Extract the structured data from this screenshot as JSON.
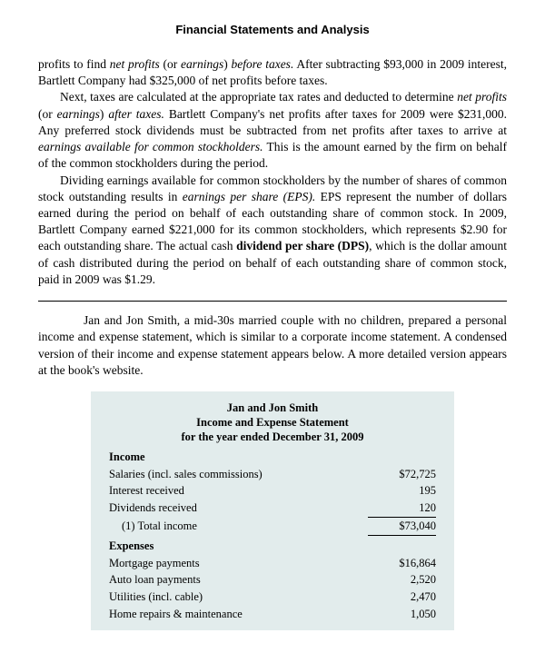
{
  "header": "Financial Statements and Analysis",
  "p1a": "profits to find ",
  "p1b": "net profits",
  "p1c": " (or ",
  "p1d": "earnings",
  "p1e": ") ",
  "p1f": "before taxes.",
  "p1g": " After subtracting $93,000 in 2009 interest, Bartlett Company had $325,000 of net profits before taxes.",
  "p2a": "Next, taxes are calculated at the appropriate tax rates and deducted to determine ",
  "p2b": "net profits",
  "p2c": " (or ",
  "p2d": "earnings",
  "p2e": ") ",
  "p2f": "after taxes.",
  "p2g": " Bartlett Company's net profits after taxes for 2009 were $231,000. Any preferred stock dividends must be subtracted from net profits after taxes to arrive at ",
  "p2h": "earnings available for common stockholders.",
  "p2i": " This is the amount earned by the firm on behalf of the common stockholders during the period.",
  "p3a": "Dividing earnings available for common stockholders by the number of shares of common stock outstanding results in ",
  "p3b": "earnings per share (EPS).",
  "p3c": " EPS represent the number of dollars earned during the period on behalf of each outstanding share of common stock. In 2009, Bartlett Company earned $221,000 for its common stockholders, which represents $2.90 for each outstanding share. The actual cash ",
  "p3d": "dividend per share (DPS)",
  "p3e": ", which is the dollar amount of cash distributed during the period on behalf of each outstanding share of common stock, paid in 2009 was $1.29.",
  "p4": "Jan and Jon Smith, a mid-30s married couple with no children, prepared a personal income and expense statement, which is similar to a corporate income statement. A condensed version of their income and expense statement appears below. A more detailed version appears at the book's website.",
  "table": {
    "title1": "Jan and Jon Smith",
    "title2": "Income and Expense Statement",
    "title3": "for the year ended December 31, 2009",
    "income_label": "Income",
    "expenses_label": "Expenses",
    "income": [
      {
        "label": "Salaries (incl. sales commissions)",
        "val": "$72,725"
      },
      {
        "label": "Interest received",
        "val": "195"
      },
      {
        "label": "Dividends received",
        "val": "120",
        "underline": true
      },
      {
        "label": "(1) Total income",
        "val": "$73,040",
        "indent": true,
        "underline": true
      }
    ],
    "expenses": [
      {
        "label": "Mortgage payments",
        "val": "$16,864"
      },
      {
        "label": "Auto loan payments",
        "val": "2,520"
      },
      {
        "label": "Utilities (incl. cable)",
        "val": "2,470"
      },
      {
        "label": "Home repairs & maintenance",
        "val": "1,050"
      }
    ]
  }
}
